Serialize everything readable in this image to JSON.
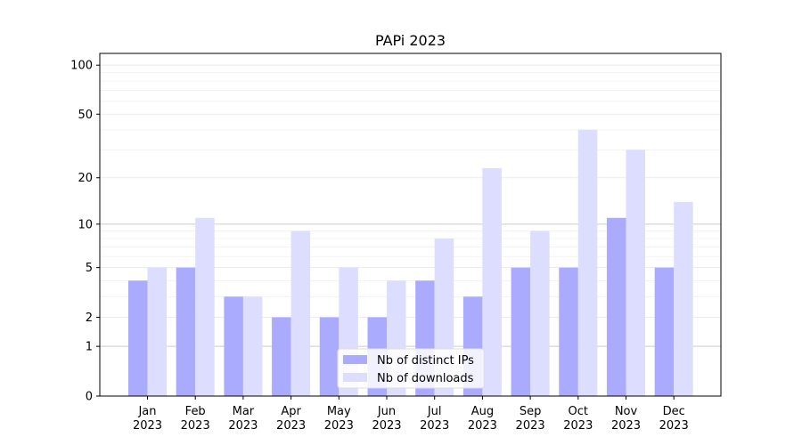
{
  "chart_data": {
    "type": "bar",
    "title": "PAPi 2023",
    "xlabel": "",
    "ylabel": "",
    "y_scale": "log1p",
    "ylim": [
      0,
      118
    ],
    "yticks": [
      0,
      1,
      2,
      5,
      10,
      20,
      50,
      100
    ],
    "ytick_labels": [
      "0",
      "1",
      "2",
      "5",
      "10",
      "20",
      "50",
      "100"
    ],
    "grid": true,
    "legend_position": "bottom-center",
    "categories": [
      {
        "month": "Jan",
        "year": "2023"
      },
      {
        "month": "Feb",
        "year": "2023"
      },
      {
        "month": "Mar",
        "year": "2023"
      },
      {
        "month": "Apr",
        "year": "2023"
      },
      {
        "month": "May",
        "year": "2023"
      },
      {
        "month": "Jun",
        "year": "2023"
      },
      {
        "month": "Jul",
        "year": "2023"
      },
      {
        "month": "Aug",
        "year": "2023"
      },
      {
        "month": "Sep",
        "year": "2023"
      },
      {
        "month": "Oct",
        "year": "2023"
      },
      {
        "month": "Nov",
        "year": "2023"
      },
      {
        "month": "Dec",
        "year": "2023"
      }
    ],
    "series": [
      {
        "name": "Nb of distinct IPs",
        "color": "#aaaaff",
        "values": [
          4,
          5,
          3,
          2,
          2,
          2,
          4,
          3,
          5,
          5,
          11,
          5
        ]
      },
      {
        "name": "Nb of downloads",
        "color": "#ddddff",
        "values": [
          5,
          11,
          3,
          9,
          5,
          4,
          8,
          23,
          9,
          40,
          30,
          14
        ]
      }
    ]
  }
}
